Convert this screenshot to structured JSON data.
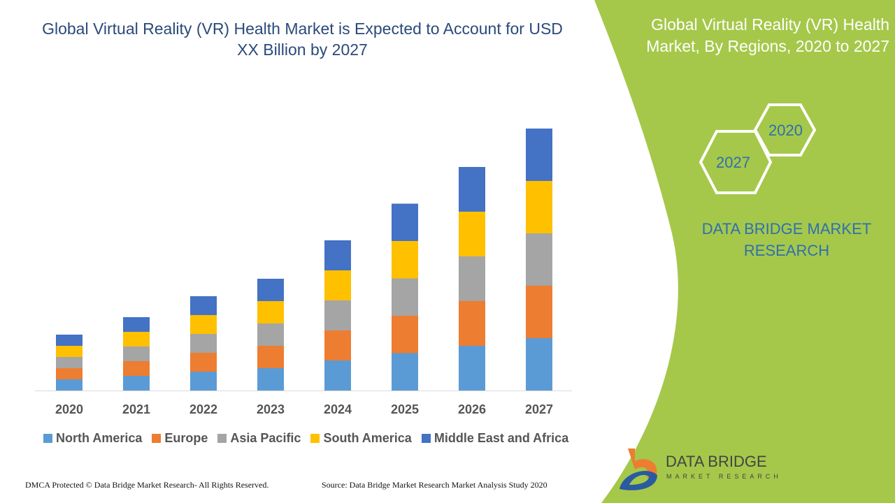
{
  "header": {
    "title": "Global Virtual Reality (VR) Health Market is Expected to Account for USD XX Billion by 2027"
  },
  "side": {
    "title": "Global Virtual Reality (VR) Health Market, By Regions, 2020 to 2027",
    "hex_a": "2020",
    "hex_b": "2027",
    "brand": "DATA BRIDGE MARKET RESEARCH",
    "logo_title": "DATA BRIDGE",
    "logo_sub": "MARKET RESEARCH"
  },
  "footer": {
    "left": "DMCA Protected © Data Bridge Market Research- All Rights Reserved.",
    "right": "Source: Data Bridge Market Research Market Analysis Study 2020"
  },
  "colors": {
    "accent_green": "#a5c84a",
    "title_blue": "#2a4a7a"
  },
  "chart_data": {
    "type": "bar",
    "stacked": true,
    "title": "Global Virtual Reality (VR) Health Market is Expected to Account for USD XX Billion by 2027",
    "categories": [
      "2020",
      "2021",
      "2022",
      "2023",
      "2024",
      "2025",
      "2026",
      "2027"
    ],
    "series": [
      {
        "name": "North America",
        "color": "#5b9bd5",
        "values": [
          3.2,
          4.2,
          5.4,
          6.4,
          8.6,
          10.7,
          12.8,
          15.0
        ]
      },
      {
        "name": "Europe",
        "color": "#ed7d31",
        "values": [
          3.2,
          4.2,
          5.4,
          6.4,
          8.6,
          10.7,
          12.8,
          15.0
        ]
      },
      {
        "name": "Asia Pacific",
        "color": "#a5a5a5",
        "values": [
          3.2,
          4.2,
          5.4,
          6.4,
          8.6,
          10.7,
          12.8,
          15.0
        ]
      },
      {
        "name": "South America",
        "color": "#ffc000",
        "values": [
          3.2,
          4.2,
          5.4,
          6.4,
          8.6,
          10.7,
          12.8,
          15.0
        ]
      },
      {
        "name": "Middle East and Africa",
        "color": "#4472c4",
        "values": [
          3.2,
          4.2,
          5.4,
          6.4,
          8.6,
          10.7,
          12.8,
          15.0
        ]
      }
    ],
    "legend": "bottom",
    "grid": false,
    "y_axis_shown": false
  }
}
